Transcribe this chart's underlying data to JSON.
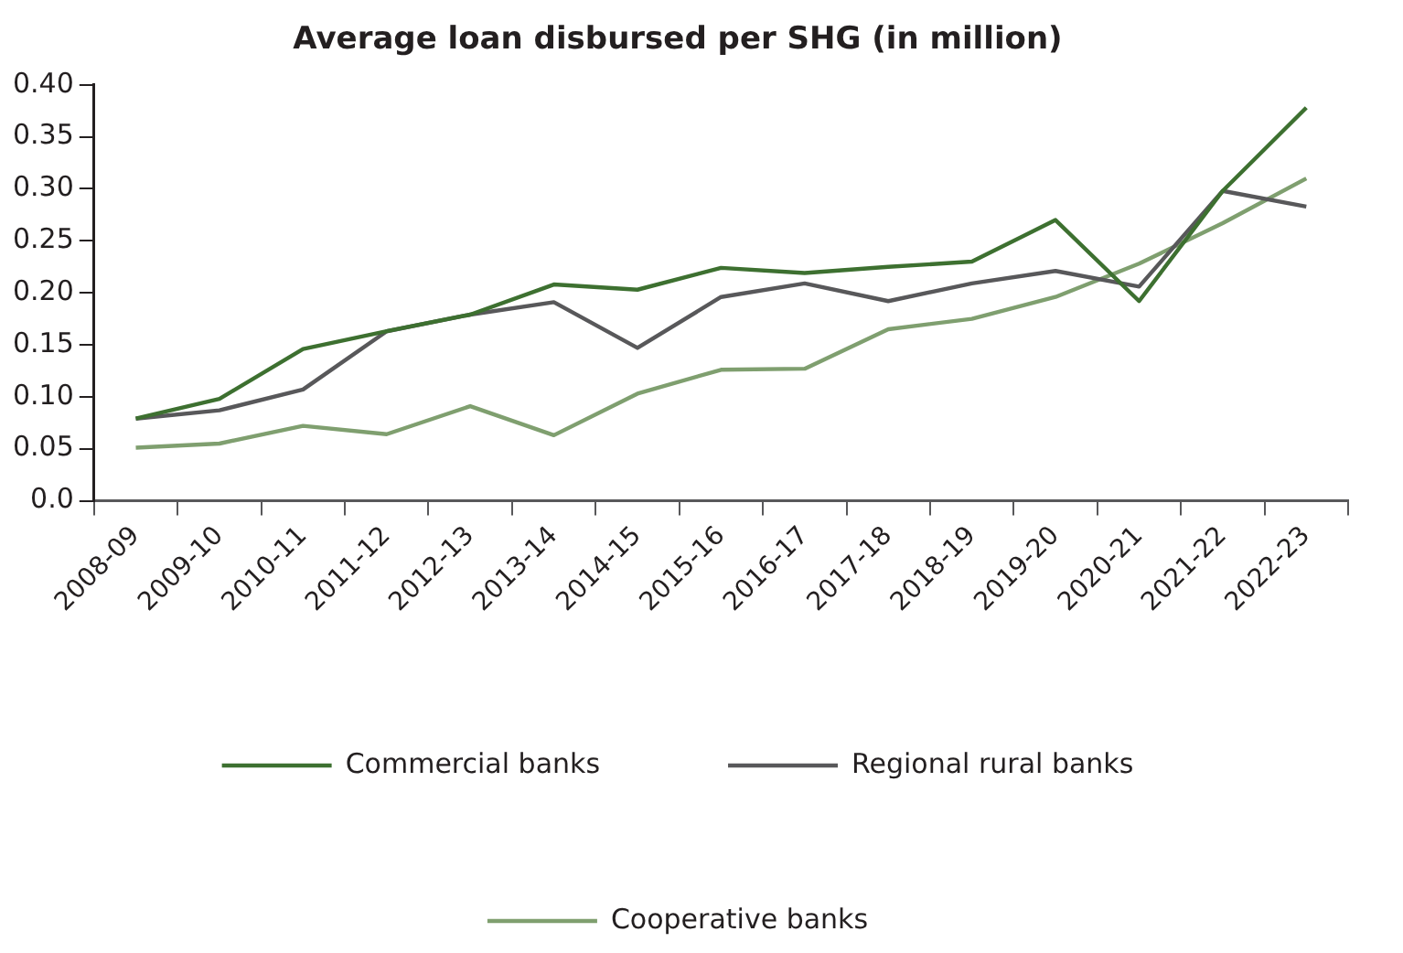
{
  "chart_data": {
    "type": "line",
    "title": "Average loan disbursed per SHG (in million)",
    "categories": [
      "2008-09",
      "2009-10",
      "2010-11",
      "2011-12",
      "2012-13",
      "2013-14",
      "2014-15",
      "2015-16",
      "2016-17",
      "2017-18",
      "2018-19",
      "2019-20",
      "2020-21",
      "2021-22",
      "2022-23"
    ],
    "series": [
      {
        "name": "Commercial banks",
        "color": "#3d7030",
        "values": [
          0.079,
          0.098,
          0.146,
          0.163,
          0.179,
          0.208,
          0.203,
          0.224,
          0.219,
          0.225,
          0.23,
          0.27,
          0.192,
          0.298,
          0.378
        ]
      },
      {
        "name": "Regional rural banks",
        "color": "#58585a",
        "values": [
          0.079,
          0.087,
          0.107,
          0.163,
          0.179,
          0.191,
          0.147,
          0.196,
          0.209,
          0.192,
          0.209,
          0.221,
          0.206,
          0.298,
          0.283
        ]
      },
      {
        "name": "Cooperative banks",
        "color": "#7f9f6f",
        "values": [
          0.051,
          0.055,
          0.072,
          0.064,
          0.091,
          0.063,
          0.103,
          0.126,
          0.127,
          0.165,
          0.175,
          0.196,
          0.228,
          0.267,
          0.31
        ]
      }
    ],
    "ylim": [
      0,
      0.4
    ],
    "yticks": [
      {
        "value": 0,
        "label": "0.0"
      },
      0.05,
      {
        "value": 0.1,
        "label": "0.10"
      },
      0.15,
      {
        "value": 0.2,
        "label": "0.20"
      },
      0.25,
      {
        "value": 0.3,
        "label": "0.30"
      },
      0.35,
      {
        "value": 0.4,
        "label": "0.40"
      }
    ],
    "grid": false,
    "legend": "bottom",
    "marker": "none",
    "line_style": "solid"
  }
}
